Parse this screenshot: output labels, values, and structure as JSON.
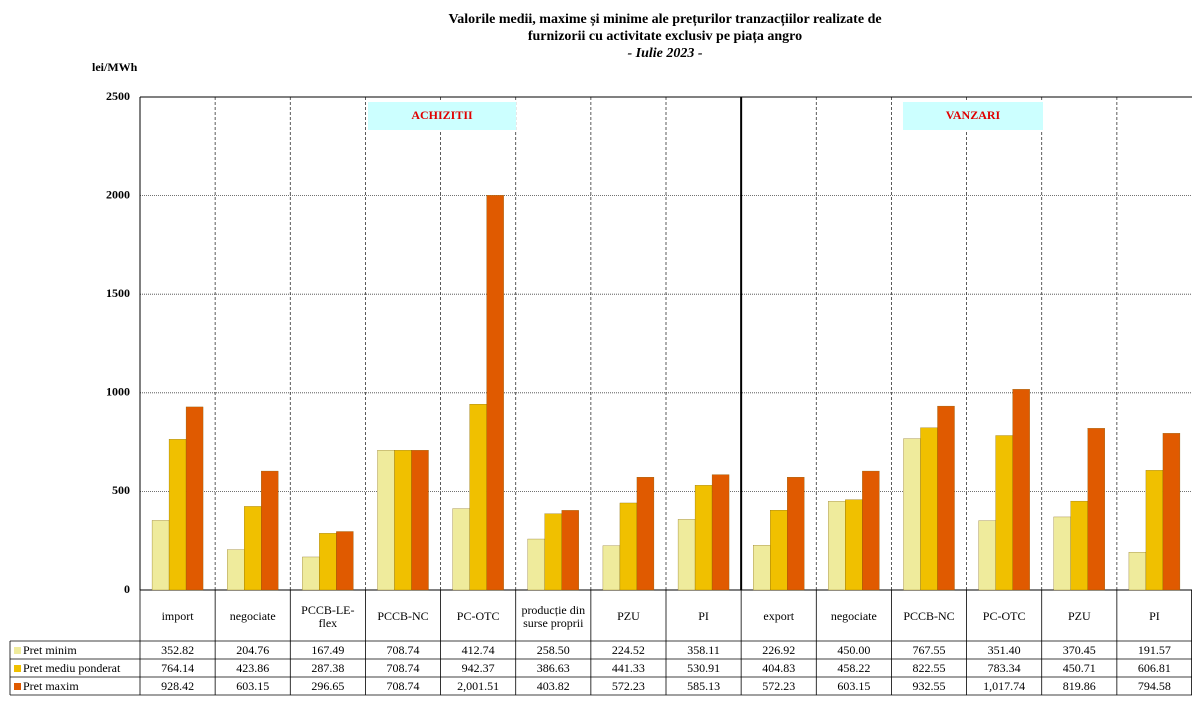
{
  "chart_data": {
    "type": "bar",
    "title": [
      "Valorile medii, maxime și minime ale prețurilor tranzacțiilor realizate de",
      "furnizorii cu activitate exclusiv pe piața angro"
    ],
    "subtitle": "- Iulie 2023 -",
    "y_label": "lei/MWh",
    "annotations": [
      "ACHIZITII",
      "VANZARI"
    ],
    "categories": [
      "import",
      "negociate",
      "PCCB-LE-flex",
      "PCCB-NC",
      "PC-OTC",
      "producție din surse proprii",
      "PZU",
      "PI",
      "export",
      "negociate",
      "PCCB-NC",
      "PC-OTC",
      "PZU",
      "PI"
    ],
    "series": [
      {
        "name": "Pret minim",
        "color": "#efeb9c",
        "values": [
          352.82,
          204.76,
          167.49,
          708.74,
          412.74,
          258.5,
          224.52,
          358.11,
          226.92,
          450.0,
          767.55,
          351.4,
          370.45,
          191.57
        ],
        "value_labels": [
          "352.82",
          "204.76",
          "167.49",
          "708.74",
          "412.74",
          "258.50",
          "224.52",
          "358.11",
          "226.92",
          "450.00",
          "767.55",
          "351.40",
          "370.45",
          "191.57"
        ]
      },
      {
        "name": "Pret mediu ponderat",
        "color": "#f0c000",
        "values": [
          764.14,
          423.86,
          287.38,
          708.74,
          942.37,
          386.63,
          441.33,
          530.91,
          404.83,
          458.22,
          822.55,
          783.34,
          450.71,
          606.81
        ],
        "value_labels": [
          "764.14",
          "423.86",
          "287.38",
          "708.74",
          "942.37",
          "386.63",
          "441.33",
          "530.91",
          "404.83",
          "458.22",
          "822.55",
          "783.34",
          "450.71",
          "606.81"
        ]
      },
      {
        "name": "Pret maxim",
        "color": "#e05a00",
        "values": [
          928.42,
          603.15,
          296.65,
          708.74,
          2001.51,
          403.82,
          572.23,
          585.13,
          572.23,
          603.15,
          932.55,
          1017.74,
          819.86,
          794.58
        ],
        "value_labels": [
          "928.42",
          "603.15",
          "296.65",
          "708.74",
          "2,001.51",
          "403.82",
          "572.23",
          "585.13",
          "572.23",
          "603.15",
          "932.55",
          "1,017.74",
          "819.86",
          "794.58"
        ]
      }
    ],
    "ylim": [
      0,
      2500
    ],
    "yticks": [
      0,
      500,
      1000,
      1500,
      2000,
      2500
    ],
    "grid": true
  }
}
